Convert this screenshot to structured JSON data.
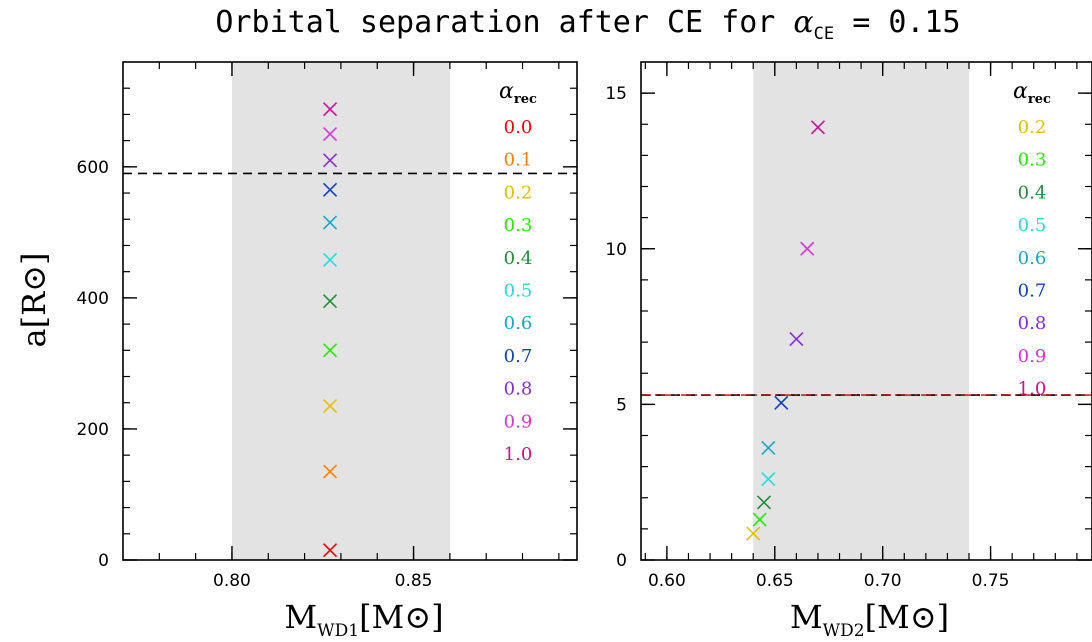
{
  "figure": {
    "title_main": "Orbital separation after CE for ",
    "title_alpha": "α",
    "title_alpha_sub": "CE",
    "title_value": " = 0.15"
  },
  "chart_data": [
    {
      "type": "scatter",
      "marker": "x",
      "xlabel": "M",
      "xlabel_sub": "WD1",
      "xlabel_unit": "[M⊙]",
      "ylabel": "a[R⊙]",
      "xlim": [
        0.77,
        0.895
      ],
      "ylim": [
        0,
        760
      ],
      "xticks": [
        0.8,
        0.85
      ],
      "xtick_labels": [
        "0.80",
        "0.85"
      ],
      "yticks": [
        0,
        200,
        400,
        600
      ],
      "ytick_labels": [
        "0",
        "200",
        "400",
        "600"
      ],
      "shaded_x_range": [
        0.8,
        0.86
      ],
      "hline": {
        "y": 590,
        "style": "dashed",
        "color": "#000000"
      },
      "legend_title": "α",
      "legend_title_sub": "rec",
      "legend_placement": "top-right",
      "series": [
        {
          "name": "0.0",
          "color": "#ff0000",
          "x": 0.827,
          "y": 15
        },
        {
          "name": "0.1",
          "color": "#ff8000",
          "x": 0.827,
          "y": 135
        },
        {
          "name": "0.2",
          "color": "#e6c000",
          "x": 0.827,
          "y": 235
        },
        {
          "name": "0.3",
          "color": "#22ee00",
          "x": 0.827,
          "y": 320
        },
        {
          "name": "0.4",
          "color": "#1f8f3a",
          "x": 0.827,
          "y": 395
        },
        {
          "name": "0.5",
          "color": "#22dede",
          "x": 0.827,
          "y": 458
        },
        {
          "name": "0.6",
          "color": "#12aacc",
          "x": 0.827,
          "y": 515
        },
        {
          "name": "0.7",
          "color": "#1040d0",
          "x": 0.827,
          "y": 565
        },
        {
          "name": "0.8",
          "color": "#8a2be2",
          "x": 0.827,
          "y": 610
        },
        {
          "name": "0.9",
          "color": "#dd33dd",
          "x": 0.827,
          "y": 650
        },
        {
          "name": "1.0",
          "color": "#cc1199",
          "x": 0.827,
          "y": 688
        }
      ]
    },
    {
      "type": "scatter",
      "marker": "x",
      "xlabel": "M",
      "xlabel_sub": "WD2",
      "xlabel_unit": "[M⊙]",
      "ylabel": "",
      "xlim": [
        0.588,
        0.797
      ],
      "ylim": [
        0,
        16
      ],
      "xticks": [
        0.6,
        0.65,
        0.7,
        0.75
      ],
      "xtick_labels": [
        "0.60",
        "0.65",
        "0.70",
        "0.75"
      ],
      "yticks": [
        0,
        5,
        10,
        15
      ],
      "ytick_labels": [
        "0",
        "5",
        "10",
        "15"
      ],
      "shaded_x_range": [
        0.64,
        0.74
      ],
      "hline": {
        "y": 5.3,
        "style": "dashed",
        "color": "#000000"
      },
      "hline2": {
        "y": 5.3,
        "style": "dash-dot",
        "color": "#cc0000"
      },
      "legend_title": "α",
      "legend_title_sub": "rec",
      "legend_placement": "top-right",
      "series": [
        {
          "name": "0.2",
          "color": "#e6c000",
          "x": 0.64,
          "y": 0.85
        },
        {
          "name": "0.3",
          "color": "#22ee00",
          "x": 0.643,
          "y": 1.3
        },
        {
          "name": "0.4",
          "color": "#1f8f3a",
          "x": 0.645,
          "y": 1.85
        },
        {
          "name": "0.5",
          "color": "#22dede",
          "x": 0.647,
          "y": 2.6
        },
        {
          "name": "0.6",
          "color": "#12aacc",
          "x": 0.647,
          "y": 3.6
        },
        {
          "name": "0.7",
          "color": "#1040d0",
          "x": 0.653,
          "y": 5.05
        },
        {
          "name": "0.8",
          "color": "#8a2be2",
          "x": 0.66,
          "y": 7.1
        },
        {
          "name": "0.9",
          "color": "#dd33dd",
          "x": 0.665,
          "y": 10.0
        },
        {
          "name": "1.0",
          "color": "#cc1199",
          "x": 0.67,
          "y": 13.9
        }
      ]
    }
  ]
}
